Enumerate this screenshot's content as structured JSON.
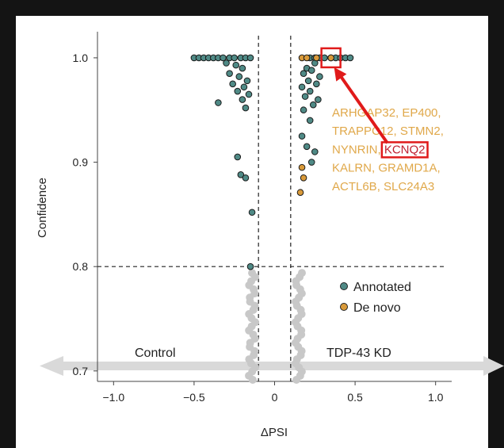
{
  "colors": {
    "annotated": "#4f8a86",
    "denovo": "#d99a3a",
    "background_points": "#c8c8c8",
    "gene_text": "#e0a84a",
    "highlight": "#e01a1a",
    "arrow_band": "#d9d9d9"
  },
  "chart_data": {
    "type": "scatter",
    "xlabel": "ΔPSI",
    "ylabel": "Confidence",
    "xlim": [
      -1.1,
      1.1
    ],
    "ylim": [
      0.69,
      1.025
    ],
    "x_ticks": [
      -1.0,
      -0.5,
      0,
      0.5,
      1.0
    ],
    "x_tick_labels": [
      "−1.0",
      "−0.5",
      "0",
      "0.5",
      "1.0"
    ],
    "y_ticks": [
      0.7,
      0.8,
      0.9,
      1.0
    ],
    "y_tick_labels": [
      "0.7",
      "0.8",
      "0.9",
      "1.0"
    ],
    "thresholds": {
      "dpsi_left": -0.1,
      "dpsi_right": 0.1,
      "confidence": 0.8
    },
    "region_labels": {
      "left": "Control",
      "right": "TDP-43 KD"
    },
    "legend": {
      "placement": "right-middle",
      "annotated": "Annotated",
      "denovo": "De novo"
    },
    "annotation": {
      "lines": [
        [
          {
            "text": "ARHGAP32, EP400,",
            "highlight": false
          }
        ],
        [
          {
            "text": "TRAPPC12, STMN2,",
            "highlight": false
          }
        ],
        [
          {
            "text": "NYNRIN, ",
            "highlight": false
          },
          {
            "text": "KCNQ2",
            "highlight": true
          }
        ],
        [
          {
            "text": "KALRN, GRAMD1A,",
            "highlight": false
          }
        ],
        [
          {
            "text": "ACTL6B, SLC24A3",
            "highlight": false
          }
        ]
      ],
      "highlighted_gene": "KCNQ2",
      "highlighted_point": {
        "x": 0.35,
        "y": 1.0
      }
    },
    "series": [
      {
        "name": "Annotated",
        "points": [
          {
            "x": -0.5,
            "y": 1.0
          },
          {
            "x": -0.47,
            "y": 1.0
          },
          {
            "x": -0.44,
            "y": 1.0
          },
          {
            "x": -0.41,
            "y": 1.0
          },
          {
            "x": -0.38,
            "y": 1.0
          },
          {
            "x": -0.35,
            "y": 1.0
          },
          {
            "x": -0.32,
            "y": 1.0
          },
          {
            "x": -0.28,
            "y": 1.0
          },
          {
            "x": -0.25,
            "y": 1.0
          },
          {
            "x": -0.21,
            "y": 1.0
          },
          {
            "x": -0.18,
            "y": 1.0
          },
          {
            "x": -0.15,
            "y": 1.0
          },
          {
            "x": -0.3,
            "y": 0.995
          },
          {
            "x": -0.24,
            "y": 0.993
          },
          {
            "x": -0.2,
            "y": 0.99
          },
          {
            "x": -0.28,
            "y": 0.985
          },
          {
            "x": -0.22,
            "y": 0.982
          },
          {
            "x": -0.17,
            "y": 0.978
          },
          {
            "x": -0.26,
            "y": 0.975
          },
          {
            "x": -0.19,
            "y": 0.972
          },
          {
            "x": -0.23,
            "y": 0.968
          },
          {
            "x": -0.16,
            "y": 0.965
          },
          {
            "x": -0.2,
            "y": 0.96
          },
          {
            "x": -0.35,
            "y": 0.957
          },
          {
            "x": -0.18,
            "y": 0.952
          },
          {
            "x": -0.23,
            "y": 0.905
          },
          {
            "x": -0.21,
            "y": 0.888
          },
          {
            "x": -0.18,
            "y": 0.885
          },
          {
            "x": -0.14,
            "y": 0.852
          },
          {
            "x": -0.15,
            "y": 0.8
          },
          {
            "x": 0.22,
            "y": 1.0
          },
          {
            "x": 0.25,
            "y": 1.0
          },
          {
            "x": 0.28,
            "y": 1.0
          },
          {
            "x": 0.31,
            "y": 1.0
          },
          {
            "x": 0.35,
            "y": 1.0
          },
          {
            "x": 0.38,
            "y": 1.0
          },
          {
            "x": 0.41,
            "y": 1.0
          },
          {
            "x": 0.44,
            "y": 1.0
          },
          {
            "x": 0.47,
            "y": 1.0
          },
          {
            "x": 0.25,
            "y": 0.995
          },
          {
            "x": 0.2,
            "y": 0.99
          },
          {
            "x": 0.23,
            "y": 0.988
          },
          {
            "x": 0.18,
            "y": 0.985
          },
          {
            "x": 0.28,
            "y": 0.982
          },
          {
            "x": 0.21,
            "y": 0.978
          },
          {
            "x": 0.26,
            "y": 0.975
          },
          {
            "x": 0.17,
            "y": 0.972
          },
          {
            "x": 0.22,
            "y": 0.968
          },
          {
            "x": 0.19,
            "y": 0.963
          },
          {
            "x": 0.27,
            "y": 0.96
          },
          {
            "x": 0.24,
            "y": 0.955
          },
          {
            "x": 0.18,
            "y": 0.95
          },
          {
            "x": 0.22,
            "y": 0.94
          },
          {
            "x": 0.17,
            "y": 0.925
          },
          {
            "x": 0.2,
            "y": 0.915
          },
          {
            "x": 0.25,
            "y": 0.91
          },
          {
            "x": 0.23,
            "y": 0.9
          }
        ]
      },
      {
        "name": "De novo",
        "points": [
          {
            "x": 0.17,
            "y": 1.0
          },
          {
            "x": 0.2,
            "y": 1.0
          },
          {
            "x": 0.26,
            "y": 1.0
          },
          {
            "x": 0.35,
            "y": 1.0
          },
          {
            "x": 0.17,
            "y": 0.895
          },
          {
            "x": 0.18,
            "y": 0.885
          },
          {
            "x": 0.16,
            "y": 0.871
          }
        ]
      }
    ]
  }
}
